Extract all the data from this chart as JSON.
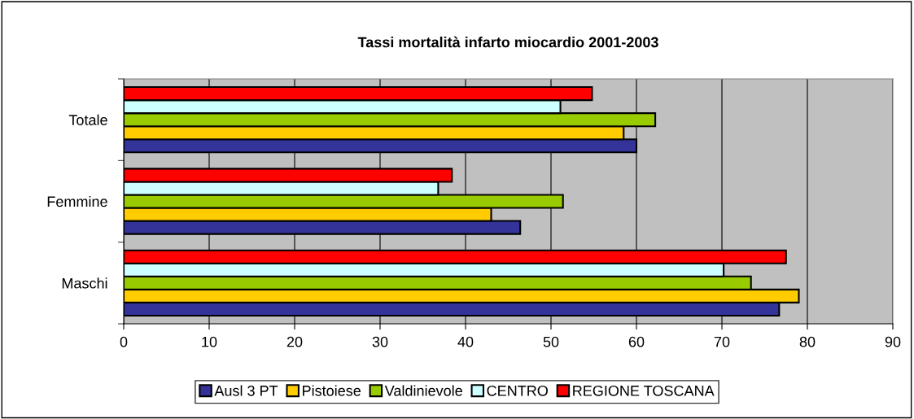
{
  "chart_data": {
    "type": "bar",
    "orientation": "horizontal",
    "title": "Tassi mortalità infarto miocardio 2001-2003",
    "categories": [
      "Totale",
      "Femmine",
      "Maschi"
    ],
    "series": [
      {
        "name": "Ausl 3 PT",
        "color": "#333399",
        "values": [
          60.0,
          46.4,
          76.7
        ]
      },
      {
        "name": "Pistoiese",
        "color": "#ffcc00",
        "values": [
          58.5,
          43.0,
          79.0
        ]
      },
      {
        "name": "Valdinievole",
        "color": "#99cc00",
        "values": [
          62.2,
          51.4,
          73.4
        ]
      },
      {
        "name": "CENTRO",
        "color": "#ccffff",
        "values": [
          51.1,
          36.8,
          70.2
        ]
      },
      {
        "name": "REGIONE TOSCANA",
        "color": "#ff0000",
        "values": [
          54.8,
          38.4,
          77.5
        ]
      }
    ],
    "xlim": [
      0,
      90
    ],
    "xticks": [
      0,
      10,
      20,
      30,
      40,
      50,
      60,
      70,
      80,
      90
    ],
    "grid": "x",
    "legend": "bottom"
  }
}
